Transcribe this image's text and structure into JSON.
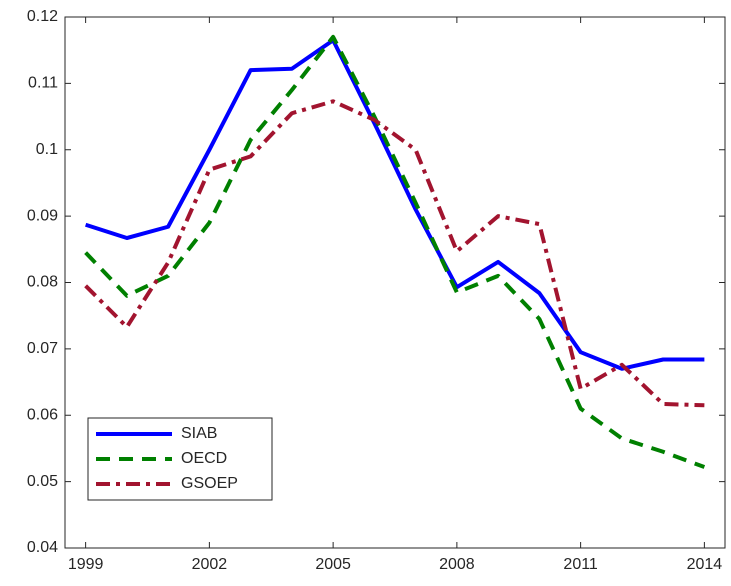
{
  "chart_data": {
    "type": "line",
    "x": [
      1999,
      2000,
      2001,
      2002,
      2003,
      2004,
      2005,
      2006,
      2007,
      2008,
      2009,
      2010,
      2011,
      2012,
      2013,
      2014
    ],
    "series": [
      {
        "name": "SIAB",
        "color": "#0000ff",
        "dash": "solid",
        "values": [
          0.0887,
          0.0867,
          0.0884,
          0.1,
          0.112,
          0.1122,
          0.1165,
          0.104,
          0.091,
          0.0793,
          0.0831,
          0.0784,
          0.0695,
          0.067,
          0.0684,
          0.0684
        ]
      },
      {
        "name": "OECD",
        "color": "#008000",
        "dash": "dashed",
        "values": [
          0.0845,
          0.078,
          0.081,
          0.089,
          0.1015,
          0.109,
          0.117,
          0.105,
          0.092,
          0.0785,
          0.081,
          0.0745,
          0.061,
          0.0565,
          0.0545,
          0.0522
        ]
      },
      {
        "name": "GSOEP",
        "color": "#a2142f",
        "dash": "dashdot",
        "values": [
          0.0795,
          0.0733,
          0.083,
          0.097,
          0.099,
          0.1055,
          0.1073,
          0.1045,
          0.1,
          0.0847,
          0.09,
          0.0888,
          0.064,
          0.0676,
          0.0617,
          0.0615
        ]
      }
    ],
    "xlim": [
      1998.5,
      2014.5
    ],
    "xticks": [
      1999,
      2002,
      2005,
      2008,
      2011,
      2014
    ],
    "ylim": [
      0.04,
      0.12
    ],
    "yticks": [
      0.04,
      0.05,
      0.06,
      0.07,
      0.08,
      0.09,
      0.1,
      0.11,
      0.12
    ],
    "legend": "lower left",
    "grid": false
  }
}
